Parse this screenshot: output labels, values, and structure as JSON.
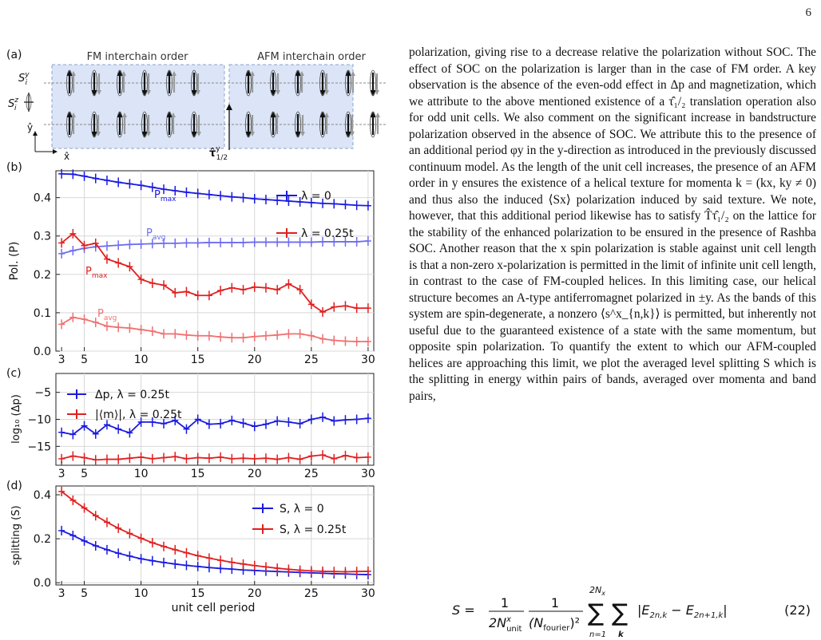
{
  "page_number": "6",
  "body_text": "polarization, giving rise to a decrease relative the polarization without SOC. The effect of SOC on the polarization is larger than in the case of FM order. A key observation is the absence of the even-odd effect in Δp and magnetization, which we attribute to the above mentioned existence of a τ̂₁/₂ translation operation also for odd unit cells. We also comment on the significant increase in bandstructure polarization observed in the absence of SOC. We attribute this to the presence of an additional period φy in the y-direction as introduced in the previously discussed continuum model. As the length of the unit cell increases, the presence of an AFM order in y ensures the existence of a helical texture for momenta k = (kx, ky ≠ 0) and thus also the induced ⟨Sx⟩ polarization induced by said texture. We note, however, that this additional period likewise has to satisfy T̂τ̂₁/₂ on the lattice for the stability of the enhanced polarization to be ensured in the presence of Rashba SOC. Another reason that the x spin polarization is stable against unit cell length is that a non-zero x-polarization is permitted in the limit of infinite unit cell length, in contrast to the case of FM-coupled helices. In this limiting case, our helical structure becomes an A-type antiferromagnet polarized in ±y. As the bands of this system are spin-degenerate, a nonzero ⟨s^x_{n,k}⟩ is permitted, but inherently not useful due to the guaranteed existence of a state with the same momentum, but opposite spin polarization. To quantify the extent to which our AFM-coupled helices are approaching this limit, we plot the averaged level splitting S which is the splitting in energy within pairs of bands, averaged over momenta and band pairs,",
  "equation": {
    "lhs": "S =",
    "frac1_num": "1",
    "frac1_den": "2N",
    "frac1_den_sup": "x",
    "frac1_den_sub": "unit",
    "frac2_num": "1",
    "frac2_den": "(N",
    "frac2_den_sub": "fourier",
    "frac2_den_tail": ")²",
    "sum_upper": "2N",
    "sum_upper_sub": "x",
    "sum_lower1": "n=1",
    "sum_lower2": "k",
    "body": "|E",
    "body_sub1": "2n,k",
    "body_mid": " − E",
    "body_sub2": "2n+1,k",
    "body_end": "|",
    "number": "(22)"
  },
  "figure": {
    "panel_labels": [
      "(a)",
      "(b)",
      "(c)",
      "(d)"
    ],
    "panel_a": {
      "fm_title": "FM interchain order",
      "afm_title": "AFM interchain order",
      "sy_label": "S",
      "sy_sup": "y",
      "sy_sub": "i",
      "sz_label": "S",
      "sz_sup": "z",
      "sz_sub": "i",
      "yhat": "ŷ",
      "xhat": "x̂",
      "tau_label": "τ̂",
      "tau_sup": "y",
      "tau_sub": "1/2"
    },
    "colors": {
      "blue": "#1a1ae0",
      "red": "#e02020",
      "light_blue": "#6d6df0",
      "light_red": "#f07070",
      "shade": "#dbe5f7"
    }
  },
  "chart_data": [
    {
      "panel": "(b)",
      "type": "line",
      "ylabel": "Pol. (P)",
      "xlim": [
        2.5,
        30.5
      ],
      "ylim": [
        0,
        0.47
      ],
      "yticks": [
        "0.0",
        "0.1",
        "0.2",
        "0.3",
        "0.4"
      ],
      "legend": [
        "λ = 0",
        "λ = 0.25t"
      ],
      "legend_position": "top-right",
      "annotations": [
        "P",
        "max",
        "P",
        "avg",
        "P",
        "max",
        "P",
        "avg"
      ],
      "x": [
        3,
        4,
        5,
        6,
        7,
        8,
        9,
        10,
        11,
        12,
        13,
        14,
        15,
        16,
        17,
        18,
        19,
        20,
        21,
        22,
        23,
        24,
        25,
        26,
        27,
        28,
        29,
        30
      ],
      "series": [
        {
          "name": "P_max, λ = 0",
          "values": [
            0.462,
            0.461,
            0.456,
            0.45,
            0.445,
            0.44,
            0.436,
            0.432,
            0.427,
            0.422,
            0.418,
            0.414,
            0.411,
            0.408,
            0.405,
            0.402,
            0.4,
            0.397,
            0.395,
            0.393,
            0.391,
            0.389,
            0.387,
            0.385,
            0.384,
            0.382,
            0.38,
            0.379
          ]
        },
        {
          "name": "P_avg, λ = 0",
          "values": [
            0.254,
            0.262,
            0.268,
            0.272,
            0.274,
            0.276,
            0.278,
            0.279,
            0.28,
            0.281,
            0.281,
            0.282,
            0.282,
            0.283,
            0.283,
            0.283,
            0.283,
            0.284,
            0.284,
            0.284,
            0.284,
            0.284,
            0.284,
            0.285,
            0.285,
            0.285,
            0.285,
            0.287
          ]
        },
        {
          "name": "P_max, λ = 0.25t",
          "values": [
            0.282,
            0.306,
            0.275,
            0.281,
            0.24,
            0.23,
            0.22,
            0.187,
            0.177,
            0.172,
            0.152,
            0.155,
            0.145,
            0.145,
            0.158,
            0.165,
            0.16,
            0.167,
            0.165,
            0.16,
            0.175,
            0.16,
            0.122,
            0.102,
            0.115,
            0.118,
            0.112,
            0.112
          ]
        },
        {
          "name": "P_avg, λ = 0.25t",
          "values": [
            0.07,
            0.088,
            0.083,
            0.075,
            0.065,
            0.062,
            0.06,
            0.056,
            0.052,
            0.045,
            0.045,
            0.042,
            0.04,
            0.04,
            0.037,
            0.035,
            0.035,
            0.038,
            0.04,
            0.042,
            0.045,
            0.045,
            0.04,
            0.032,
            0.028,
            0.026,
            0.025,
            0.025
          ]
        }
      ]
    },
    {
      "panel": "(c)",
      "type": "line",
      "ylabel": "log₁₀ (Δp)",
      "xlim": [
        2.5,
        30.5
      ],
      "ylim": [
        -18.5,
        -1.5
      ],
      "yticks": [
        "−5",
        "−10",
        "−15"
      ],
      "legend": [
        "Δp, λ = 0.25t",
        "|⟨m⟩|, λ = 0.25t"
      ],
      "legend_position": "top-left",
      "x": [
        3,
        4,
        5,
        6,
        7,
        8,
        9,
        10,
        11,
        12,
        13,
        14,
        15,
        16,
        17,
        18,
        19,
        20,
        21,
        22,
        23,
        24,
        25,
        26,
        27,
        28,
        29,
        30
      ],
      "series": [
        {
          "name": "Δp, λ = 0.25t",
          "values": [
            -12.4,
            -12.8,
            -11.2,
            -12.7,
            -11.0,
            -11.8,
            -12.5,
            -10.5,
            -10.5,
            -10.8,
            -10.2,
            -11.8,
            -10.0,
            -10.9,
            -10.8,
            -10.2,
            -10.7,
            -11.3,
            -10.9,
            -10.3,
            -10.5,
            -10.8,
            -10.0,
            -9.6,
            -10.3,
            -10.1,
            -10.0,
            -9.8
          ]
        },
        {
          "name": "|⟨m⟩|, λ = 0.25t",
          "values": [
            -17.3,
            -16.8,
            -17.1,
            -17.5,
            -17.4,
            -17.4,
            -17.2,
            -17.0,
            -17.3,
            -17.1,
            -16.9,
            -17.3,
            -17.1,
            -17.2,
            -17.0,
            -17.3,
            -17.2,
            -17.3,
            -17.2,
            -17.4,
            -17.1,
            -17.4,
            -16.8,
            -16.6,
            -17.3,
            -16.7,
            -17.1,
            -17.0
          ]
        }
      ]
    },
    {
      "panel": "(d)",
      "type": "line",
      "ylabel": "splitting (S)",
      "xlabel": "unit cell period",
      "xlim": [
        2.5,
        30.5
      ],
      "ylim": [
        -0.01,
        0.44
      ],
      "yticks": [
        "0.0",
        "0.2",
        "0.4"
      ],
      "xticks": [
        "3",
        "5",
        "10",
        "15",
        "20",
        "25",
        "30"
      ],
      "legend": [
        "S, λ = 0",
        "S, λ = 0.25t"
      ],
      "legend_position": "top-right",
      "x": [
        3,
        4,
        5,
        6,
        7,
        8,
        9,
        10,
        11,
        12,
        13,
        14,
        15,
        16,
        17,
        18,
        19,
        20,
        21,
        22,
        23,
        24,
        25,
        26,
        27,
        28,
        29,
        30
      ],
      "series": [
        {
          "name": "S, λ = 0",
          "values": [
            0.237,
            0.215,
            0.19,
            0.168,
            0.15,
            0.134,
            0.121,
            0.109,
            0.1,
            0.092,
            0.085,
            0.079,
            0.074,
            0.069,
            0.065,
            0.062,
            0.058,
            0.056,
            0.053,
            0.051,
            0.049,
            0.047,
            0.045,
            0.043,
            0.041,
            0.04,
            0.038,
            0.037
          ]
        },
        {
          "name": "S, λ = 0.25t",
          "values": [
            0.415,
            0.375,
            0.34,
            0.305,
            0.275,
            0.248,
            0.224,
            0.202,
            0.182,
            0.165,
            0.15,
            0.136,
            0.123,
            0.112,
            0.102,
            0.093,
            0.085,
            0.078,
            0.072,
            0.066,
            0.061,
            0.057,
            0.054,
            0.052,
            0.051,
            0.05,
            0.051,
            0.052
          ]
        }
      ]
    }
  ]
}
